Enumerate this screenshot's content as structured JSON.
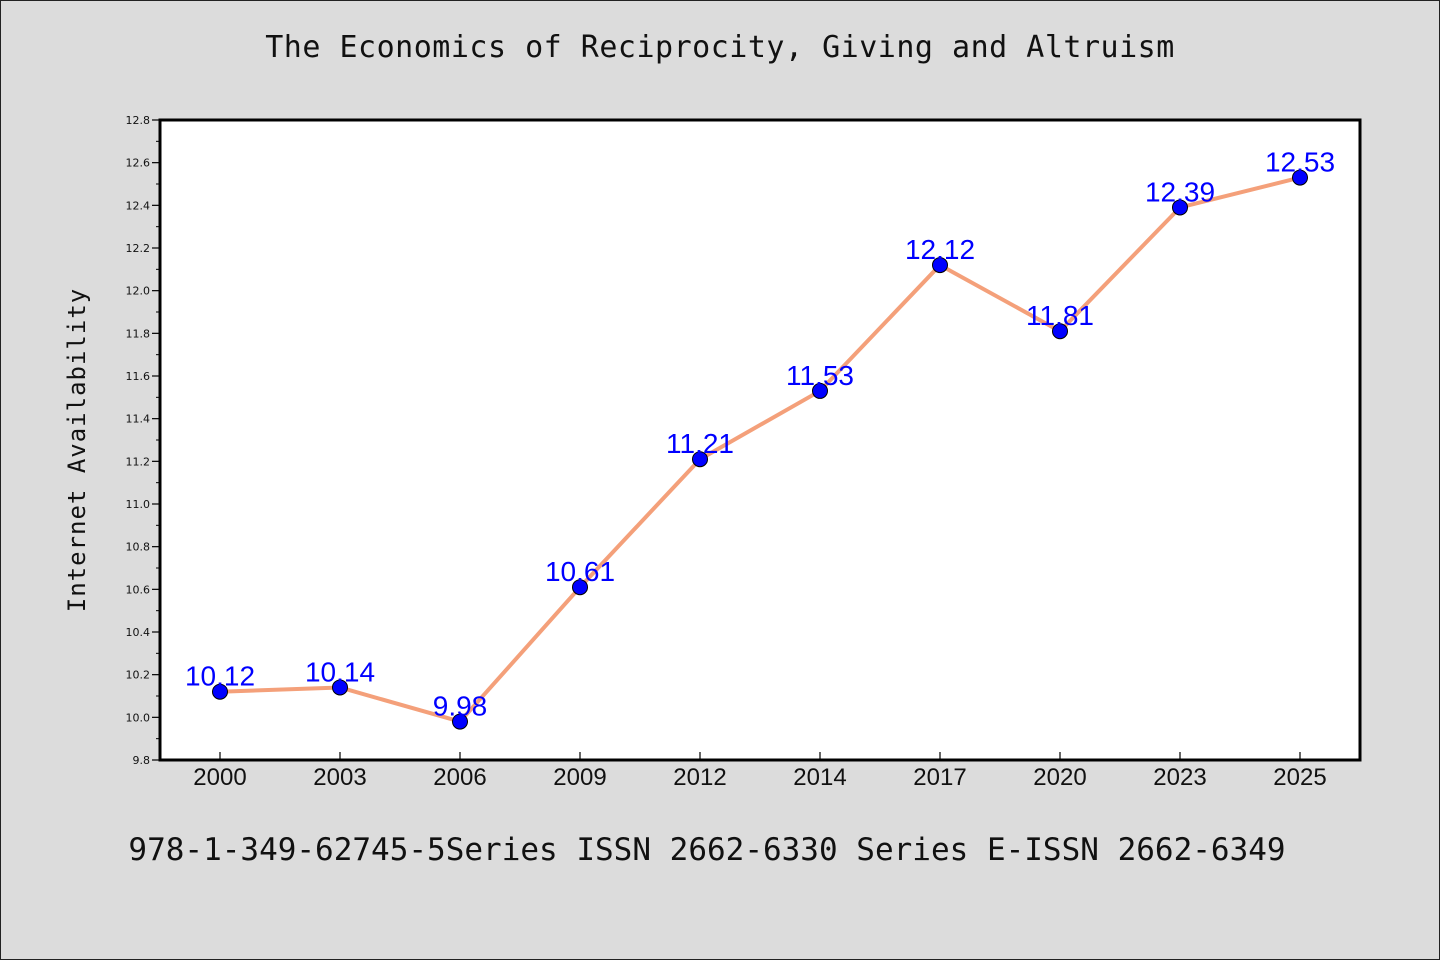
{
  "chart_data": {
    "type": "line",
    "title": "The Economics of Reciprocity, Giving and Altruism",
    "xlabel": "",
    "ylabel": "Internet Availability",
    "categories": [
      "2000",
      "2003",
      "2006",
      "2009",
      "2012",
      "2014",
      "2017",
      "2020",
      "2023",
      "2025"
    ],
    "series": [
      {
        "values": [
          10.12,
          10.14,
          9.98,
          10.61,
          11.21,
          11.53,
          12.12,
          11.81,
          12.39,
          12.53
        ],
        "labels": [
          "10.12",
          "10.14",
          "9.98",
          "10.61",
          "11.21",
          "11.53",
          "12.12",
          "11.81",
          "12.39",
          "12.53"
        ]
      }
    ],
    "ylim": [
      9.8,
      12.8
    ],
    "yticks": [
      "9.8",
      "10.0",
      "10.2",
      "10.4",
      "10.6",
      "10.8",
      "11.0",
      "11.2",
      "11.4",
      "11.6",
      "11.8",
      "12.0",
      "12.2",
      "12.4",
      "12.6",
      "12.8"
    ],
    "grid": false,
    "legend": "none",
    "line_color": "#f4a07a",
    "marker_color": "#0000ff",
    "label_color": "#0000ff",
    "background_color": "#dcdcdc",
    "plot_background_color": "#ffffff"
  },
  "footer": {
    "text": "978-1-349-62745-5Series ISSN 2662-6330 Series E-ISSN 2662-6349"
  }
}
